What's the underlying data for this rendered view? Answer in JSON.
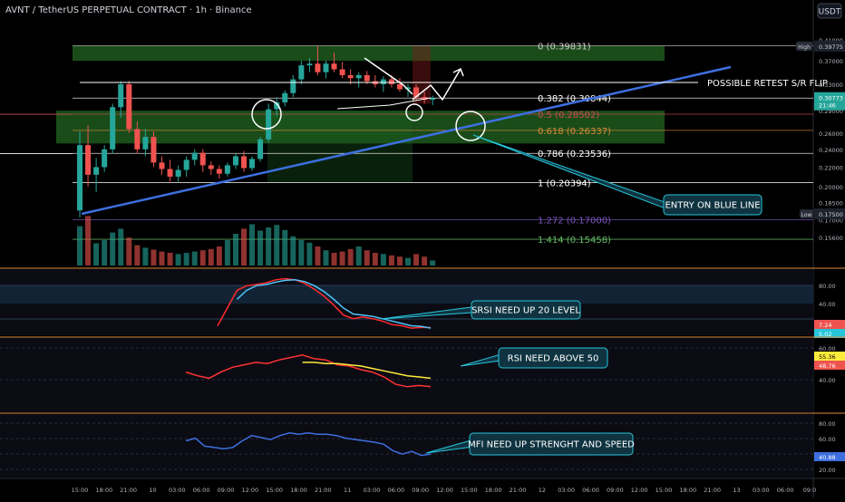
{
  "header": {
    "title": "AVNT / TetherUS PERPETUAL CONTRACT · 1h · Binance",
    "currency_button": "USDT"
  },
  "colors": {
    "bg": "#000000",
    "up": "#26a69a",
    "down": "#ef5350",
    "trendline": "#3d6fe0",
    "zone": "#2e8b2e",
    "callout": "#26c6da"
  },
  "chart_data": [
    {
      "type": "candlestick",
      "title": "AVNT / TetherUS PERPETUAL CONTRACT · 1h · Binance",
      "y_axis": {
        "scale": "log",
        "ticks": [
          "0.41000",
          "0.37000",
          "0.33000",
          "0.29000",
          "0.26000",
          "0.24000",
          "0.22000",
          "0.20000",
          "0.18500",
          "0.17000",
          "0.15600"
        ],
        "tick_values": [
          0.41,
          0.37,
          0.33,
          0.29,
          0.26,
          0.24,
          0.22,
          0.2,
          0.185,
          0.17,
          0.156
        ]
      },
      "x_axis": {
        "ticks": [
          "15:00",
          "18:00",
          "21:00",
          "10",
          "03:00",
          "06:00",
          "09:00",
          "12:00",
          "15:00",
          "18:00",
          "21:00",
          "11",
          "03:00",
          "06:00",
          "09:00",
          "12:00",
          "15:00",
          "18:00",
          "21:00",
          "12",
          "03:00",
          "06:00",
          "09:00",
          "12:00",
          "15:00",
          "18:00",
          "21:00",
          "13",
          "03:00",
          "06:00",
          "09:0"
        ]
      },
      "price_labels": [
        {
          "tag": "High",
          "value": "0.39775"
        },
        {
          "tag": "",
          "value": "0.30773",
          "sub": "21:46"
        },
        {
          "tag": "Low",
          "value": "0.17500"
        }
      ],
      "fibonacci": [
        {
          "level": "0",
          "price": 0.39831,
          "label": "0 (0.39831)",
          "color": "#cfcfcf"
        },
        {
          "level": "0.382",
          "price": 0.30844,
          "label": "0.382 (0.30844)",
          "color": "#ffffff"
        },
        {
          "level": "0.5",
          "price": 0.28502,
          "label": "0.5 (0.28502)",
          "color": "#cf4f4f"
        },
        {
          "level": "0.618",
          "price": 0.26337,
          "label": "0.618 (0.26337)",
          "color": "#e08a3a"
        },
        {
          "level": "0.786",
          "price": 0.23536,
          "label": "0.786 (0.23536)",
          "color": "#ffffff"
        },
        {
          "level": "1",
          "price": 0.20394,
          "label": "1 (0.20394)",
          "color": "#ffffff"
        },
        {
          "level": "1.272",
          "price": 0.17,
          "label": "1.272 (0.17000)",
          "color": "#7e57c2"
        },
        {
          "level": "1.414",
          "price": 0.15458,
          "label": "1.414 (0.15458)",
          "color": "#66bb6a"
        }
      ],
      "annotations": [
        "POSSIBLE RETEST S/R FLIP",
        "ENTRY ON BLUE LINE"
      ],
      "candles": [
        {
          "o": 0.178,
          "h": 0.262,
          "l": 0.172,
          "c": 0.245
        },
        {
          "o": 0.245,
          "h": 0.27,
          "l": 0.2,
          "c": 0.212
        },
        {
          "o": 0.212,
          "h": 0.23,
          "l": 0.195,
          "c": 0.22
        },
        {
          "o": 0.22,
          "h": 0.245,
          "l": 0.215,
          "c": 0.24
        },
        {
          "o": 0.24,
          "h": 0.3,
          "l": 0.235,
          "c": 0.295
        },
        {
          "o": 0.295,
          "h": 0.335,
          "l": 0.28,
          "c": 0.33
        },
        {
          "o": 0.33,
          "h": 0.335,
          "l": 0.26,
          "c": 0.265
        },
        {
          "o": 0.265,
          "h": 0.275,
          "l": 0.235,
          "c": 0.24
        },
        {
          "o": 0.24,
          "h": 0.265,
          "l": 0.232,
          "c": 0.255
        },
        {
          "o": 0.255,
          "h": 0.262,
          "l": 0.22,
          "c": 0.225
        },
        {
          "o": 0.225,
          "h": 0.232,
          "l": 0.212,
          "c": 0.218
        },
        {
          "o": 0.218,
          "h": 0.228,
          "l": 0.205,
          "c": 0.21
        },
        {
          "o": 0.21,
          "h": 0.222,
          "l": 0.205,
          "c": 0.217
        },
        {
          "o": 0.217,
          "h": 0.232,
          "l": 0.21,
          "c": 0.228
        },
        {
          "o": 0.228,
          "h": 0.24,
          "l": 0.222,
          "c": 0.236
        },
        {
          "o": 0.236,
          "h": 0.24,
          "l": 0.215,
          "c": 0.222
        },
        {
          "o": 0.222,
          "h": 0.226,
          "l": 0.212,
          "c": 0.218
        },
        {
          "o": 0.218,
          "h": 0.222,
          "l": 0.208,
          "c": 0.213
        },
        {
          "o": 0.213,
          "h": 0.225,
          "l": 0.21,
          "c": 0.222
        },
        {
          "o": 0.222,
          "h": 0.235,
          "l": 0.218,
          "c": 0.232
        },
        {
          "o": 0.232,
          "h": 0.238,
          "l": 0.215,
          "c": 0.219
        },
        {
          "o": 0.219,
          "h": 0.232,
          "l": 0.216,
          "c": 0.229
        },
        {
          "o": 0.229,
          "h": 0.255,
          "l": 0.226,
          "c": 0.252
        },
        {
          "o": 0.252,
          "h": 0.3,
          "l": 0.248,
          "c": 0.292
        },
        {
          "o": 0.292,
          "h": 0.31,
          "l": 0.282,
          "c": 0.302
        },
        {
          "o": 0.302,
          "h": 0.32,
          "l": 0.296,
          "c": 0.316
        },
        {
          "o": 0.316,
          "h": 0.345,
          "l": 0.31,
          "c": 0.338
        },
        {
          "o": 0.338,
          "h": 0.37,
          "l": 0.33,
          "c": 0.362
        },
        {
          "o": 0.362,
          "h": 0.375,
          "l": 0.35,
          "c": 0.365
        },
        {
          "o": 0.365,
          "h": 0.398,
          "l": 0.345,
          "c": 0.35
        },
        {
          "o": 0.35,
          "h": 0.37,
          "l": 0.34,
          "c": 0.365
        },
        {
          "o": 0.365,
          "h": 0.385,
          "l": 0.35,
          "c": 0.355
        },
        {
          "o": 0.355,
          "h": 0.368,
          "l": 0.34,
          "c": 0.345
        },
        {
          "o": 0.345,
          "h": 0.355,
          "l": 0.33,
          "c": 0.34
        },
        {
          "o": 0.34,
          "h": 0.35,
          "l": 0.325,
          "c": 0.345
        },
        {
          "o": 0.345,
          "h": 0.352,
          "l": 0.33,
          "c": 0.335
        },
        {
          "o": 0.335,
          "h": 0.345,
          "l": 0.325,
          "c": 0.33
        },
        {
          "o": 0.33,
          "h": 0.343,
          "l": 0.318,
          "c": 0.338
        },
        {
          "o": 0.338,
          "h": 0.345,
          "l": 0.325,
          "c": 0.33
        },
        {
          "o": 0.33,
          "h": 0.34,
          "l": 0.318,
          "c": 0.322
        },
        {
          "o": 0.322,
          "h": 0.33,
          "l": 0.31,
          "c": 0.325
        },
        {
          "o": 0.325,
          "h": 0.33,
          "l": 0.305,
          "c": 0.31
        },
        {
          "o": 0.31,
          "h": 0.318,
          "l": 0.3,
          "c": 0.306
        },
        {
          "o": 0.306,
          "h": 0.312,
          "l": 0.298,
          "c": 0.308
        }
      ],
      "volume": [
        0.62,
        0.78,
        0.35,
        0.4,
        0.52,
        0.58,
        0.44,
        0.32,
        0.28,
        0.25,
        0.22,
        0.2,
        0.18,
        0.2,
        0.22,
        0.24,
        0.26,
        0.3,
        0.4,
        0.5,
        0.58,
        0.65,
        0.55,
        0.6,
        0.64,
        0.56,
        0.46,
        0.4,
        0.36,
        0.3,
        0.24,
        0.2,
        0.22,
        0.26,
        0.3,
        0.24,
        0.2,
        0.18,
        0.16,
        0.14,
        0.12,
        0.18,
        0.14,
        0.08
      ]
    },
    {
      "type": "line",
      "annotation": "SRSI NEED UP 20 LEVEL",
      "ticks": [
        "80.00",
        "40.00"
      ],
      "value_labels": [
        "7.24",
        "5.02"
      ],
      "series": [
        {
          "color": "#ff2b2b",
          "values": [
            10,
            40,
            70,
            78,
            80,
            83,
            88,
            90,
            88,
            82,
            72,
            60,
            45,
            28,
            22,
            25,
            22,
            18,
            12,
            10,
            6,
            7,
            7
          ]
        },
        {
          "color": "#4fc3f7",
          "values": [
            null,
            null,
            55,
            70,
            78,
            80,
            84,
            87,
            88,
            85,
            78,
            68,
            55,
            40,
            30,
            28,
            26,
            22,
            18,
            14,
            10,
            9,
            6
          ]
        }
      ],
      "ylim": [
        0,
        100
      ]
    },
    {
      "type": "line",
      "annotation": "RSI NEED ABOVE 50",
      "ticks": [
        "60.00",
        "40.00"
      ],
      "value_labels": [
        "55.36",
        "48.76"
      ],
      "series": [
        {
          "color": "#ff3333",
          "values": [
            60,
            57,
            55,
            60,
            64,
            66,
            68,
            67,
            70,
            72,
            74,
            71,
            70,
            66,
            65,
            62,
            60,
            56,
            50,
            48,
            49,
            48
          ]
        },
        {
          "color": "#ffeb3b",
          "values": [
            null,
            null,
            null,
            null,
            null,
            null,
            null,
            null,
            null,
            null,
            68,
            68,
            67,
            67,
            66,
            65,
            63,
            61,
            59,
            57,
            56,
            55
          ]
        }
      ],
      "ylim": [
        30,
        85
      ]
    },
    {
      "type": "line",
      "annotation": "MFI NEED UP STRENGHT AND SPEED",
      "ticks": [
        "80.00",
        "60.00",
        "40.00",
        "20.00"
      ],
      "value_labels": [
        "40.88"
      ],
      "series": [
        {
          "color": "#3d6fe0",
          "values": [
            60,
            64,
            52,
            50,
            48,
            50,
            60,
            68,
            65,
            62,
            68,
            72,
            70,
            72,
            70,
            70,
            68,
            64,
            62,
            60,
            58,
            55,
            45,
            40,
            44,
            38,
            40
          ]
        }
      ],
      "ylim": [
        10,
        95
      ]
    }
  ]
}
